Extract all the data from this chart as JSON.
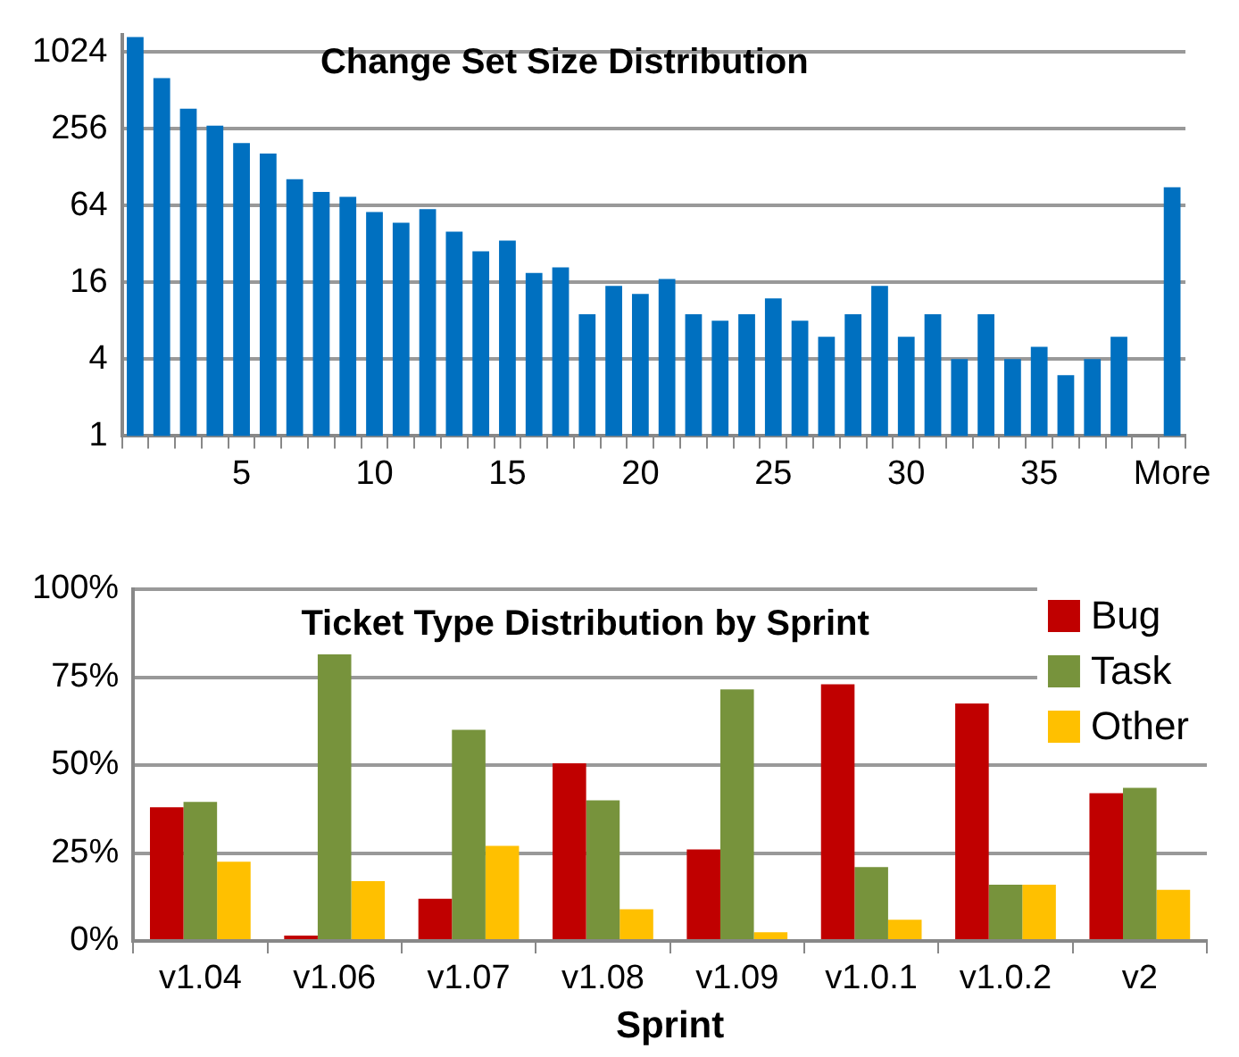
{
  "chart_data": [
    {
      "type": "bar",
      "title": "Change Set Size Distribution",
      "categories": [
        null,
        null,
        null,
        null,
        "5",
        null,
        null,
        null,
        null,
        "10",
        null,
        null,
        null,
        null,
        "15",
        null,
        null,
        null,
        null,
        "20",
        null,
        null,
        null,
        null,
        "25",
        null,
        null,
        null,
        null,
        "30",
        null,
        null,
        null,
        null,
        "35",
        null,
        null,
        null,
        null,
        "More"
      ],
      "values": [
        1340,
        640,
        368,
        271,
        198,
        164,
        103,
        82,
        75,
        57,
        47,
        60,
        40,
        28,
        34,
        19,
        21,
        9,
        15,
        13,
        17,
        9,
        8,
        9,
        12,
        8,
        6,
        9,
        15,
        6,
        9,
        4,
        9,
        4,
        5,
        3,
        4,
        6,
        null,
        89
      ],
      "color": "#0070c0",
      "log": "y",
      "ylim": [
        1,
        1400
      ],
      "yticks": [
        1,
        4,
        16,
        64,
        256,
        1024
      ],
      "grid": "y"
    },
    {
      "type": "bar",
      "title": "Ticket Type Distribution by Sprint",
      "xlabel": "Sprint",
      "categories": [
        "v1.04",
        "v1.06",
        "v1.07",
        "v1.08",
        "v1.09",
        "v1.0.1",
        "v1.0.2",
        "v2"
      ],
      "series": [
        {
          "name": "Bug",
          "color": "#c00000",
          "values": [
            38,
            1.5,
            12,
            50.5,
            26,
            73,
            67.5,
            42
          ]
        },
        {
          "name": "Task",
          "color": "#77933c",
          "values": [
            39.5,
            81.5,
            60,
            40,
            71.5,
            21,
            16,
            43.5
          ]
        },
        {
          "name": "Other",
          "color": "#ffc000",
          "values": [
            22.5,
            17,
            27,
            9,
            2.5,
            6,
            16,
            14.5
          ]
        }
      ],
      "ylim": [
        0,
        100
      ],
      "yticks": [
        {
          "value": 0,
          "label": "0%"
        },
        {
          "value": 25,
          "label": "25%"
        },
        {
          "value": 50,
          "label": "50%"
        },
        {
          "value": 75,
          "label": "75%"
        },
        {
          "value": 100,
          "label": "100%"
        }
      ],
      "grid": "y",
      "legend": "top right"
    }
  ]
}
